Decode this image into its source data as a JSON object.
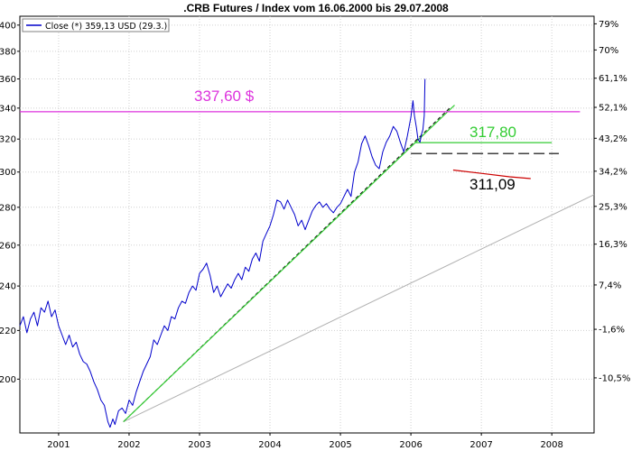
{
  "chart_data": {
    "type": "line",
    "title": ".CRB Futures / Index vom 16.06.2000 bis 29.07.2008",
    "legend": {
      "label": "Close (*) 359,13 USD (29.3.)",
      "placement": "top-left"
    },
    "xlim": [
      2000.45,
      2008.6
    ],
    "ylim": [
      180,
      407
    ],
    "y_log_scale": true,
    "grid": true,
    "x_ticks": [
      {
        "label": "2001",
        "x": 2001.0
      },
      {
        "label": "2002",
        "x": 2002.0
      },
      {
        "label": "2003",
        "x": 2003.0
      },
      {
        "label": "2004",
        "x": 2004.0
      },
      {
        "label": "2005",
        "x": 2005.0
      },
      {
        "label": "2006",
        "x": 2006.0
      },
      {
        "label": "2007",
        "x": 2007.0
      },
      {
        "label": "2008",
        "x": 2008.0
      }
    ],
    "y_ticks_left": [
      {
        "label": "400",
        "v": 400
      },
      {
        "label": "380",
        "v": 380
      },
      {
        "label": "360",
        "v": 360
      },
      {
        "label": "340",
        "v": 340
      },
      {
        "label": "320",
        "v": 320
      },
      {
        "label": "300",
        "v": 300
      },
      {
        "label": "280",
        "v": 280
      },
      {
        "label": "260",
        "v": 260
      },
      {
        "label": "240",
        "v": 240
      },
      {
        "label": "220",
        "v": 220
      },
      {
        "label": "200",
        "v": 200
      }
    ],
    "y_ticks_right": [
      {
        "label": "79%",
        "v": 401
      },
      {
        "label": "70%",
        "v": 381
      },
      {
        "label": "61,1%",
        "v": 360.5
      },
      {
        "label": "52,1%",
        "v": 340.5
      },
      {
        "label": "43,2%",
        "v": 320.5
      },
      {
        "label": "34,2%",
        "v": 300.5
      },
      {
        "label": "25,3%",
        "v": 280.5
      },
      {
        "label": "16,3%",
        "v": 260.5
      },
      {
        "label": "7,4%",
        "v": 240.5
      },
      {
        "label": "-1,6%",
        "v": 220.5
      },
      {
        "label": "-10,5%",
        "v": 200.5
      }
    ],
    "series": [
      {
        "color": "#0000cc",
        "points": [
          [
            2000.45,
            222
          ],
          [
            2000.5,
            226
          ],
          [
            2000.55,
            219
          ],
          [
            2000.6,
            225
          ],
          [
            2000.65,
            228
          ],
          [
            2000.7,
            222
          ],
          [
            2000.75,
            230
          ],
          [
            2000.8,
            228
          ],
          [
            2000.85,
            233
          ],
          [
            2000.9,
            226
          ],
          [
            2000.95,
            229
          ],
          [
            2001.0,
            222
          ],
          [
            2001.05,
            218
          ],
          [
            2001.1,
            214
          ],
          [
            2001.15,
            218
          ],
          [
            2001.2,
            213
          ],
          [
            2001.25,
            215
          ],
          [
            2001.3,
            210
          ],
          [
            2001.35,
            207
          ],
          [
            2001.4,
            206
          ],
          [
            2001.45,
            203
          ],
          [
            2001.5,
            199
          ],
          [
            2001.55,
            196
          ],
          [
            2001.6,
            192
          ],
          [
            2001.65,
            190
          ],
          [
            2001.7,
            184
          ],
          [
            2001.73,
            182
          ],
          [
            2001.77,
            185
          ],
          [
            2001.8,
            183
          ],
          [
            2001.85,
            188
          ],
          [
            2001.9,
            189
          ],
          [
            2001.95,
            187
          ],
          [
            2002.0,
            192
          ],
          [
            2002.05,
            190
          ],
          [
            2002.1,
            195
          ],
          [
            2002.15,
            199
          ],
          [
            2002.2,
            203
          ],
          [
            2002.25,
            206
          ],
          [
            2002.3,
            209
          ],
          [
            2002.35,
            216
          ],
          [
            2002.4,
            214
          ],
          [
            2002.45,
            218
          ],
          [
            2002.5,
            222
          ],
          [
            2002.55,
            220
          ],
          [
            2002.6,
            226
          ],
          [
            2002.65,
            225
          ],
          [
            2002.7,
            230
          ],
          [
            2002.75,
            233
          ],
          [
            2002.8,
            232
          ],
          [
            2002.85,
            237
          ],
          [
            2002.9,
            240
          ],
          [
            2002.95,
            238
          ],
          [
            2003.0,
            246
          ],
          [
            2003.05,
            248
          ],
          [
            2003.1,
            251
          ],
          [
            2003.15,
            245
          ],
          [
            2003.2,
            237
          ],
          [
            2003.25,
            240
          ],
          [
            2003.3,
            235
          ],
          [
            2003.35,
            238
          ],
          [
            2003.4,
            241
          ],
          [
            2003.45,
            239
          ],
          [
            2003.5,
            243
          ],
          [
            2003.55,
            246
          ],
          [
            2003.6,
            243
          ],
          [
            2003.65,
            249
          ],
          [
            2003.7,
            247
          ],
          [
            2003.75,
            253
          ],
          [
            2003.8,
            256
          ],
          [
            2003.85,
            252
          ],
          [
            2003.9,
            262
          ],
          [
            2003.95,
            266
          ],
          [
            2004.0,
            270
          ],
          [
            2004.05,
            276
          ],
          [
            2004.1,
            284
          ],
          [
            2004.15,
            283
          ],
          [
            2004.2,
            279
          ],
          [
            2004.25,
            284
          ],
          [
            2004.3,
            280
          ],
          [
            2004.35,
            276
          ],
          [
            2004.4,
            270
          ],
          [
            2004.45,
            273
          ],
          [
            2004.5,
            268
          ],
          [
            2004.55,
            273
          ],
          [
            2004.6,
            278
          ],
          [
            2004.65,
            281
          ],
          [
            2004.7,
            283
          ],
          [
            2004.75,
            280
          ],
          [
            2004.8,
            282
          ],
          [
            2004.85,
            279
          ],
          [
            2004.9,
            277
          ],
          [
            2004.95,
            280
          ],
          [
            2005.0,
            282
          ],
          [
            2005.05,
            286
          ],
          [
            2005.1,
            290
          ],
          [
            2005.15,
            286
          ],
          [
            2005.2,
            300
          ],
          [
            2005.25,
            306
          ],
          [
            2005.3,
            317
          ],
          [
            2005.35,
            322
          ],
          [
            2005.4,
            316
          ],
          [
            2005.45,
            309
          ],
          [
            2005.5,
            304
          ],
          [
            2005.55,
            302
          ],
          [
            2005.6,
            312
          ],
          [
            2005.65,
            318
          ],
          [
            2005.7,
            322
          ],
          [
            2005.75,
            328
          ],
          [
            2005.8,
            325
          ],
          [
            2005.85,
            318
          ],
          [
            2005.9,
            312
          ],
          [
            2005.95,
            322
          ],
          [
            2006.0,
            334
          ],
          [
            2006.03,
            345
          ],
          [
            2006.05,
            335
          ],
          [
            2006.08,
            327
          ],
          [
            2006.1,
            320
          ],
          [
            2006.13,
            318
          ],
          [
            2006.15,
            323
          ],
          [
            2006.17,
            326
          ],
          [
            2006.19,
            335
          ],
          [
            2006.2,
            360
          ]
        ]
      }
    ],
    "annotations": {
      "resistance": {
        "value": 337.6,
        "label": "337,60 $",
        "color": "#dd33dd",
        "x_range": [
          2000.45,
          2008.4
        ]
      },
      "level_317": {
        "value": 317.8,
        "label": "317,80",
        "color": "#33cc33",
        "x_range": [
          2006.05,
          2008.0
        ]
      },
      "level_311": {
        "value": 311.09,
        "label": "311,09",
        "color": "#000000",
        "x_range": [
          2006.0,
          2008.1
        ]
      },
      "red_mark": {
        "color": "#cc0000",
        "points": [
          [
            2006.6,
            301.2
          ],
          [
            2007.0,
            299.2
          ],
          [
            2007.4,
            297.2
          ],
          [
            2007.7,
            296.2
          ]
        ]
      },
      "trend_green": {
        "color": "#33cc33",
        "points": [
          [
            2001.92,
            184
          ],
          [
            2006.62,
            342
          ]
        ]
      },
      "trend_black_dashed": {
        "color": "#000000",
        "points": [
          [
            2001.92,
            184
          ],
          [
            2006.55,
            340
          ]
        ]
      },
      "trend_grey": {
        "color": "#b0b0b0",
        "points": [
          [
            2001.92,
            184
          ],
          [
            2008.6,
            287
          ]
        ]
      }
    }
  }
}
